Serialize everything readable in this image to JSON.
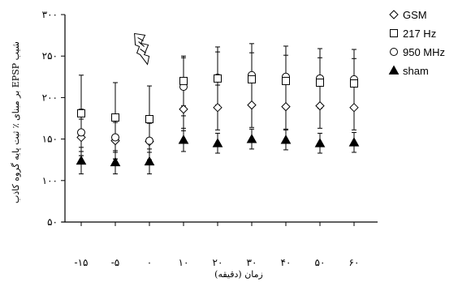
{
  "chart_data": {
    "type": "scatter",
    "xlabel": "زمان (دقیقه)",
    "ylabel": "شیب EPSP بر مبنای ٪ ثبت پایه گروه کاذب",
    "x": [
      -15,
      -5,
      0,
      10,
      20,
      30,
      40,
      50,
      60
    ],
    "xtick_labels": [
      "-۱۵",
      "-۵",
      "۰",
      "۱۰",
      "۲۰",
      "۳۰",
      "۴۰",
      "۵۰",
      "۶۰"
    ],
    "ylim": [
      50,
      300
    ],
    "yticks": [
      50,
      100,
      150,
      200,
      250,
      300
    ],
    "ytick_labels": [
      "۵۰",
      "۱۰۰",
      "۱۵۰",
      "۲۰۰",
      "۲۵۰",
      "۳۰۰"
    ],
    "grid": false,
    "legend_position": "top-right",
    "stimulus_marker": {
      "x": -1,
      "y_tip": 240
    },
    "series": [
      {
        "name": "GSM",
        "marker": "diamond-open",
        "values": [
          152,
          148,
          147,
          186,
          188,
          191,
          189,
          190,
          188
        ],
        "errors": [
          22,
          22,
          22,
          26,
          27,
          27,
          27,
          27,
          27
        ]
      },
      {
        "name": "217 Hz",
        "marker": "square-open",
        "values": [
          181,
          176,
          174,
          220,
          223,
          222,
          220,
          218,
          217
        ],
        "errors": [
          46,
          42,
          40,
          30,
          32,
          32,
          31,
          30,
          30
        ]
      },
      {
        "name": "950 MHz",
        "marker": "circle-open",
        "values": [
          158,
          152,
          148,
          213,
          224,
          227,
          225,
          223,
          222
        ],
        "errors": [
          28,
          26,
          26,
          35,
          37,
          38,
          37,
          36,
          36
        ]
      },
      {
        "name": "sham",
        "marker": "triangle-filled",
        "values": [
          124,
          122,
          123,
          149,
          145,
          150,
          149,
          145,
          146
        ],
        "errors": [
          16,
          14,
          15,
          14,
          12,
          12,
          12,
          12,
          12
        ]
      }
    ]
  }
}
